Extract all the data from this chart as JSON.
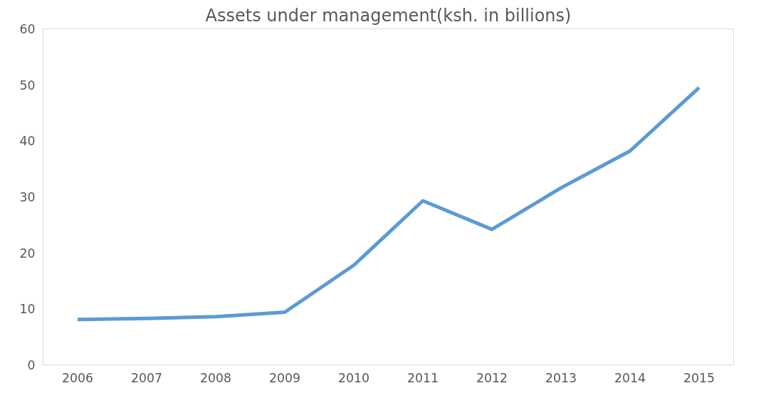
{
  "chart_data": {
    "type": "line",
    "title": "Assets under management(ksh. in billions)",
    "categories": [
      "2006",
      "2007",
      "2008",
      "2009",
      "2010",
      "2011",
      "2012",
      "2013",
      "2014",
      "2015"
    ],
    "series": [
      {
        "color": "#5b9bd5",
        "values": [
          8.1,
          8.3,
          8.6,
          9.4,
          17.8,
          29.3,
          24.2,
          31.6,
          38.2,
          49.5
        ]
      }
    ],
    "ylim": [
      0,
      60
    ],
    "yticks": [
      0,
      10,
      20,
      30,
      40,
      50,
      60
    ],
    "grid": false,
    "marker": "none",
    "line_style": "solid"
  }
}
